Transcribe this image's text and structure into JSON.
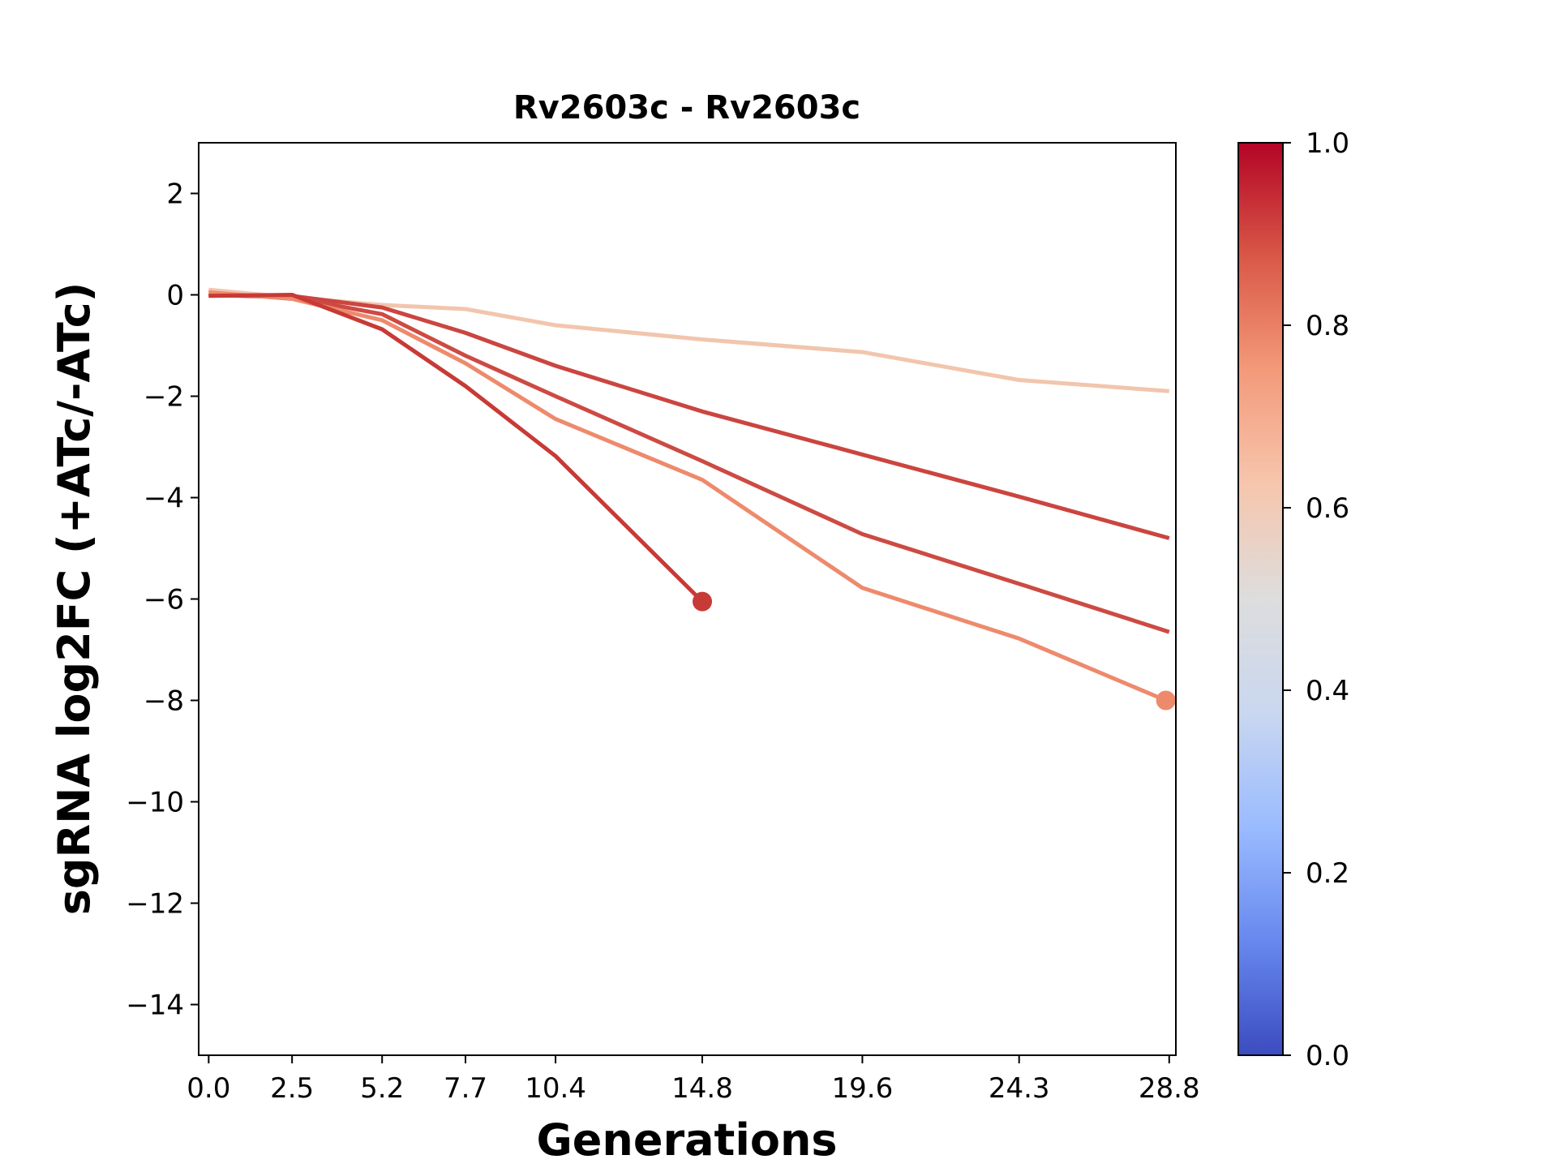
{
  "chart_data": {
    "type": "line",
    "title": "Rv2603c - Rv2603c",
    "xlabel": "Generations",
    "ylabel": "sgRNA log2FC (+ATc/-ATc)",
    "xlim": [
      -0.3,
      29.0
    ],
    "ylim": [
      -15,
      3
    ],
    "xticks": [
      0.0,
      2.5,
      5.2,
      7.7,
      10.4,
      14.8,
      19.6,
      24.3,
      28.8
    ],
    "xtick_labels": [
      "0.0",
      "2.5",
      "5.2",
      "7.7",
      "10.4",
      "14.8",
      "19.6",
      "24.3",
      "28.8"
    ],
    "yticks": [
      2,
      0,
      -2,
      -4,
      -6,
      -8,
      -10,
      -12,
      -14
    ],
    "ytick_labels": [
      "2",
      "0",
      "−2",
      "−4",
      "−6",
      "−8",
      "−10",
      "−12",
      "−14"
    ],
    "series": [
      {
        "color": "#f2c5ad",
        "x": [
          0.0,
          2.5,
          5.2,
          7.7,
          10.4,
          14.8,
          19.6,
          24.3,
          28.8
        ],
        "y": [
          0.1,
          -0.05,
          -0.2,
          -0.28,
          -0.6,
          -0.88,
          -1.13,
          -1.68,
          -1.9
        ],
        "end_marker": false
      },
      {
        "color": "#cb4540",
        "x": [
          0.0,
          2.5,
          5.2,
          7.7,
          10.4,
          14.8,
          19.6,
          24.3,
          28.8
        ],
        "y": [
          0.0,
          -0.02,
          -0.25,
          -0.75,
          -1.4,
          -2.3,
          -3.15,
          -3.98,
          -4.8
        ],
        "end_marker": false
      },
      {
        "color": "#cd4a43",
        "x": [
          0.0,
          2.5,
          5.2,
          7.7,
          10.4,
          14.8,
          19.6,
          24.3,
          28.8
        ],
        "y": [
          0.0,
          -0.05,
          -0.38,
          -1.2,
          -2.0,
          -3.28,
          -4.72,
          -5.7,
          -6.65
        ],
        "end_marker": false
      },
      {
        "color": "#ee8a6c",
        "x": [
          0.0,
          2.5,
          5.2,
          7.7,
          10.4,
          14.8,
          19.6,
          24.3,
          28.7
        ],
        "y": [
          0.05,
          -0.08,
          -0.5,
          -1.35,
          -2.45,
          -3.65,
          -5.78,
          -6.78,
          -8.0
        ],
        "end_marker": true
      },
      {
        "color": "#c73a36",
        "x": [
          0.0,
          2.5,
          5.2,
          7.7,
          10.4,
          14.8
        ],
        "y": [
          -0.02,
          0.0,
          -0.68,
          -1.8,
          -3.18,
          -6.05
        ],
        "end_marker": true
      }
    ],
    "colorbar": {
      "range": [
        0.0,
        1.0
      ],
      "ticks": [
        "0.0",
        "0.2",
        "0.4",
        "0.6",
        "0.8",
        "1.0"
      ],
      "colormap": [
        "#3b4cc0",
        "#6788ee",
        "#9abbff",
        "#c9d7f0",
        "#dddddd",
        "#f6c6ad",
        "#f49a7b",
        "#d95847",
        "#b40426"
      ]
    }
  }
}
